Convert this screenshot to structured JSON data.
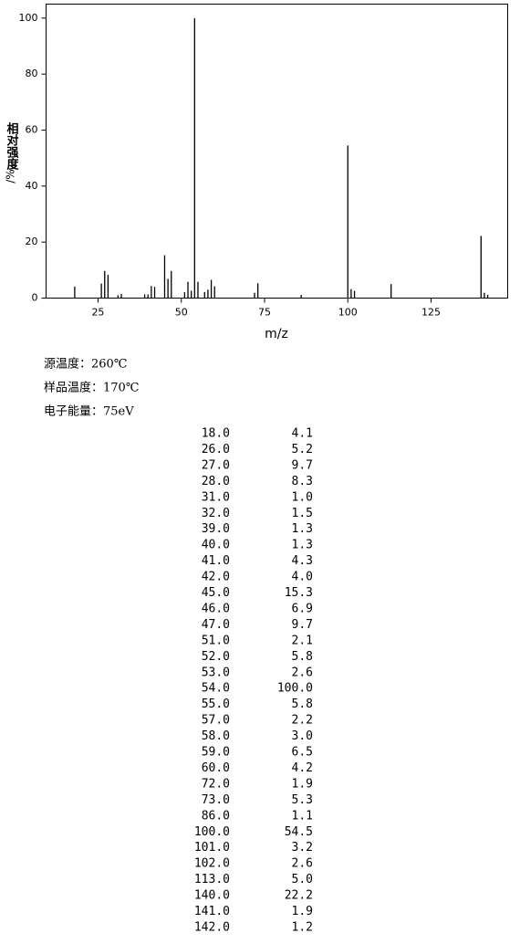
{
  "chart_data": {
    "type": "bar",
    "ylabel": "相对强度",
    "ylabel_unit": "/%",
    "xlabel": "m/z",
    "x": [
      18,
      26,
      27,
      28,
      31,
      32,
      39,
      40,
      41,
      42,
      45,
      46,
      47,
      51,
      52,
      53,
      54,
      55,
      57,
      58,
      59,
      60,
      72,
      73,
      86,
      100,
      101,
      102,
      113,
      140,
      141,
      142
    ],
    "x_labels": [
      "18.0",
      "26.0",
      "27.0",
      "28.0",
      "31.0",
      "32.0",
      "39.0",
      "40.0",
      "41.0",
      "42.0",
      "45.0",
      "46.0",
      "47.0",
      "51.0",
      "52.0",
      "53.0",
      "54.0",
      "55.0",
      "57.0",
      "58.0",
      "59.0",
      "60.0",
      "72.0",
      "73.0",
      "86.0",
      "100.0",
      "101.0",
      "102.0",
      "113.0",
      "140.0",
      "141.0",
      "142.0"
    ],
    "values": [
      4.1,
      5.2,
      9.7,
      8.3,
      1.0,
      1.5,
      1.3,
      1.3,
      4.3,
      4.0,
      15.3,
      6.9,
      9.7,
      2.1,
      5.8,
      2.6,
      100.0,
      5.8,
      2.2,
      3.0,
      6.5,
      4.2,
      1.9,
      5.3,
      1.1,
      54.5,
      3.2,
      2.6,
      5.0,
      22.2,
      1.9,
      1.2
    ],
    "value_labels": [
      "4.1",
      "5.2",
      "9.7",
      "8.3",
      "1.0",
      "1.5",
      "1.3",
      "1.3",
      "4.3",
      "4.0",
      "15.3",
      "6.9",
      "9.7",
      "2.1",
      "5.8",
      "2.6",
      "100.0",
      "5.8",
      "2.2",
      "3.0",
      "6.5",
      "4.2",
      "1.9",
      "5.3",
      "1.1",
      "54.5",
      "3.2",
      "2.6",
      "5.0",
      "22.2",
      "1.9",
      "1.2"
    ],
    "color": "#000000",
    "xlim": [
      9.4,
      148
    ],
    "ylim": [
      0,
      105
    ],
    "xticks": [
      25,
      50,
      75,
      100,
      125
    ],
    "yticks": [
      0,
      20,
      40,
      60,
      80,
      100
    ]
  },
  "conditions": [
    "源温度：260℃",
    "样品温度：170℃",
    "电子能量：75eV"
  ]
}
